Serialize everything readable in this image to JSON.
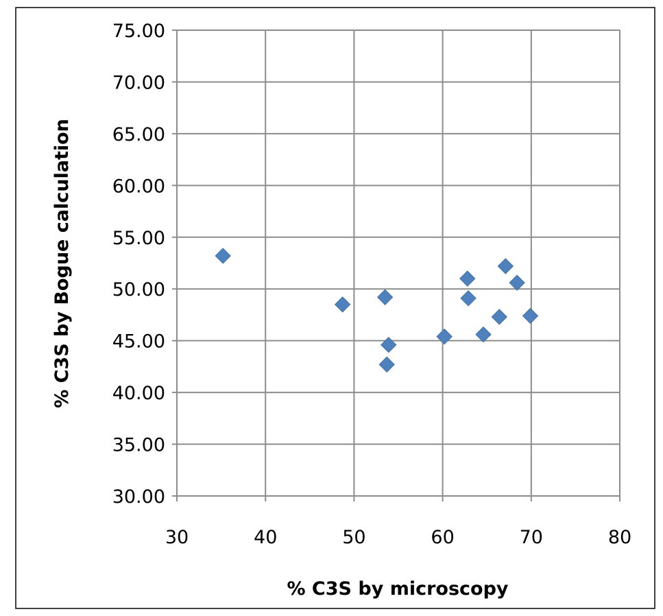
{
  "chart_data": {
    "type": "scatter",
    "title": "",
    "xlabel": "% C3S by microscopy",
    "ylabel": "% C3S  by  Bogue  calculation",
    "xlim": [
      30,
      80
    ],
    "ylim": [
      30,
      75
    ],
    "x_ticks": [
      "30",
      "40",
      "50",
      "60",
      "70",
      "80"
    ],
    "y_ticks": [
      "30.00",
      "35.00",
      "40.00",
      "45.00",
      "50.00",
      "55.00",
      "60.00",
      "65.00",
      "70.00",
      "75.00"
    ],
    "grid": true,
    "legend": "none",
    "marker": "diamond",
    "series": [
      {
        "color": "#4F81BD",
        "points": [
          {
            "x": 35.2,
            "y": 53.2
          },
          {
            "x": 48.7,
            "y": 48.5
          },
          {
            "x": 53.5,
            "y": 49.2
          },
          {
            "x": 53.9,
            "y": 44.6
          },
          {
            "x": 53.7,
            "y": 42.7
          },
          {
            "x": 60.2,
            "y": 45.4
          },
          {
            "x": 62.8,
            "y": 51.0
          },
          {
            "x": 62.9,
            "y": 49.1
          },
          {
            "x": 64.6,
            "y": 45.6
          },
          {
            "x": 66.4,
            "y": 47.3
          },
          {
            "x": 67.1,
            "y": 52.2
          },
          {
            "x": 68.4,
            "y": 50.6
          },
          {
            "x": 69.9,
            "y": 47.4
          }
        ]
      }
    ]
  }
}
